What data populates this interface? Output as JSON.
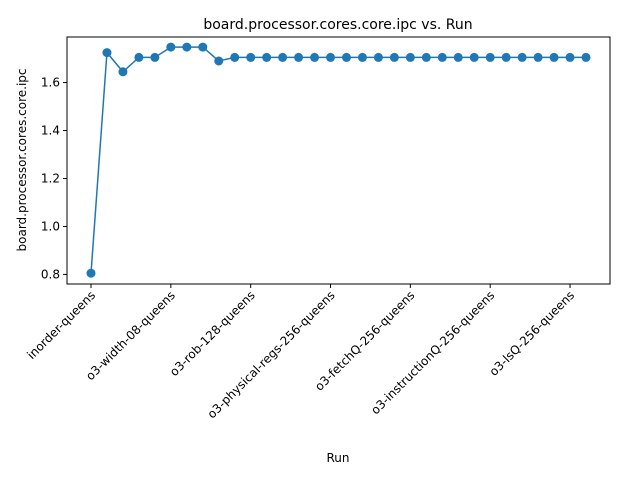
{
  "chart_data": {
    "type": "line",
    "title": "board.processor.cores.core.ipc vs. Run",
    "xlabel": "Run",
    "ylabel": "board.processor.cores.core.ipc",
    "ylim": [
      0.76,
      1.79
    ],
    "yticks": [
      0.8,
      1.0,
      1.2,
      1.4,
      1.6
    ],
    "ytick_labels": [
      "0.8",
      "1.0",
      "1.2",
      "1.4",
      "1.6"
    ],
    "xtick_positions": [
      0,
      5,
      10,
      15,
      20,
      25,
      30
    ],
    "xtick_labels": [
      "inorder-queens",
      "o3-width-08-queens",
      "o3-rob-128-queens",
      "o3-physical-regs-256-queens",
      "o3-fetchQ-256-queens",
      "o3-instructionQ-256-queens",
      "o3-lsQ-256-queens"
    ],
    "grid": false,
    "legend": "none",
    "series": [
      {
        "color": "#1f77b4",
        "marker": "circle",
        "values": [
          0.805,
          1.725,
          1.645,
          1.705,
          1.705,
          1.748,
          1.748,
          1.748,
          1.69,
          1.705,
          1.705,
          1.705,
          1.705,
          1.705,
          1.705,
          1.705,
          1.705,
          1.705,
          1.705,
          1.705,
          1.705,
          1.705,
          1.705,
          1.705,
          1.705,
          1.705,
          1.705,
          1.705,
          1.705,
          1.705,
          1.705,
          1.705
        ]
      }
    ]
  }
}
